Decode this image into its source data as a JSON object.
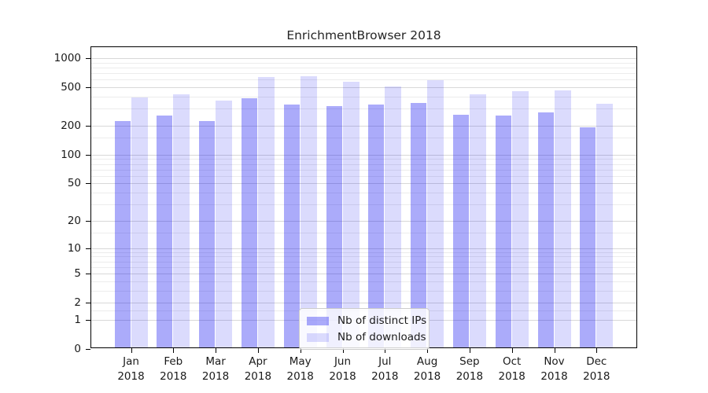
{
  "title": "EnrichmentBrowser 2018",
  "chart_data": {
    "type": "bar",
    "title": "EnrichmentBrowser 2018",
    "x_categories": [
      {
        "month": "Jan",
        "year": "2018"
      },
      {
        "month": "Feb",
        "year": "2018"
      },
      {
        "month": "Mar",
        "year": "2018"
      },
      {
        "month": "Apr",
        "year": "2018"
      },
      {
        "month": "May",
        "year": "2018"
      },
      {
        "month": "Jun",
        "year": "2018"
      },
      {
        "month": "Jul",
        "year": "2018"
      },
      {
        "month": "Aug",
        "year": "2018"
      },
      {
        "month": "Sep",
        "year": "2018"
      },
      {
        "month": "Oct",
        "year": "2018"
      },
      {
        "month": "Nov",
        "year": "2018"
      },
      {
        "month": "Dec",
        "year": "2018"
      }
    ],
    "series": [
      {
        "name": "Nb of distinct IPs",
        "values": [
          215,
          245,
          215,
          370,
          320,
          310,
          320,
          335,
          250,
          245,
          265,
          185
        ]
      },
      {
        "name": "Nb of downloads",
        "values": [
          375,
          410,
          350,
          610,
          630,
          550,
          495,
          570,
          410,
          440,
          445,
          325
        ]
      }
    ],
    "y_scale": "log1p",
    "y_ticks": [
      0,
      1,
      2,
      5,
      10,
      20,
      50,
      100,
      200,
      500,
      1000
    ],
    "y_minor_gridlines": [
      1.5,
      3,
      4,
      6,
      7,
      8,
      9,
      15,
      30,
      40,
      60,
      70,
      80,
      90,
      150,
      300,
      400,
      600,
      700,
      800,
      900
    ],
    "ylim": [
      0,
      1300
    ],
    "grid": true,
    "legend_position": "bottom-center"
  },
  "colors": {
    "bar_distinct_ips": "rgba(15,15,240,0.35)",
    "bar_downloads": "rgba(15,15,240,0.15)",
    "grid_major": "#d8d8d8",
    "grid_minor": "#ececec",
    "axis": "#000000",
    "text": "#1a1a1a"
  }
}
